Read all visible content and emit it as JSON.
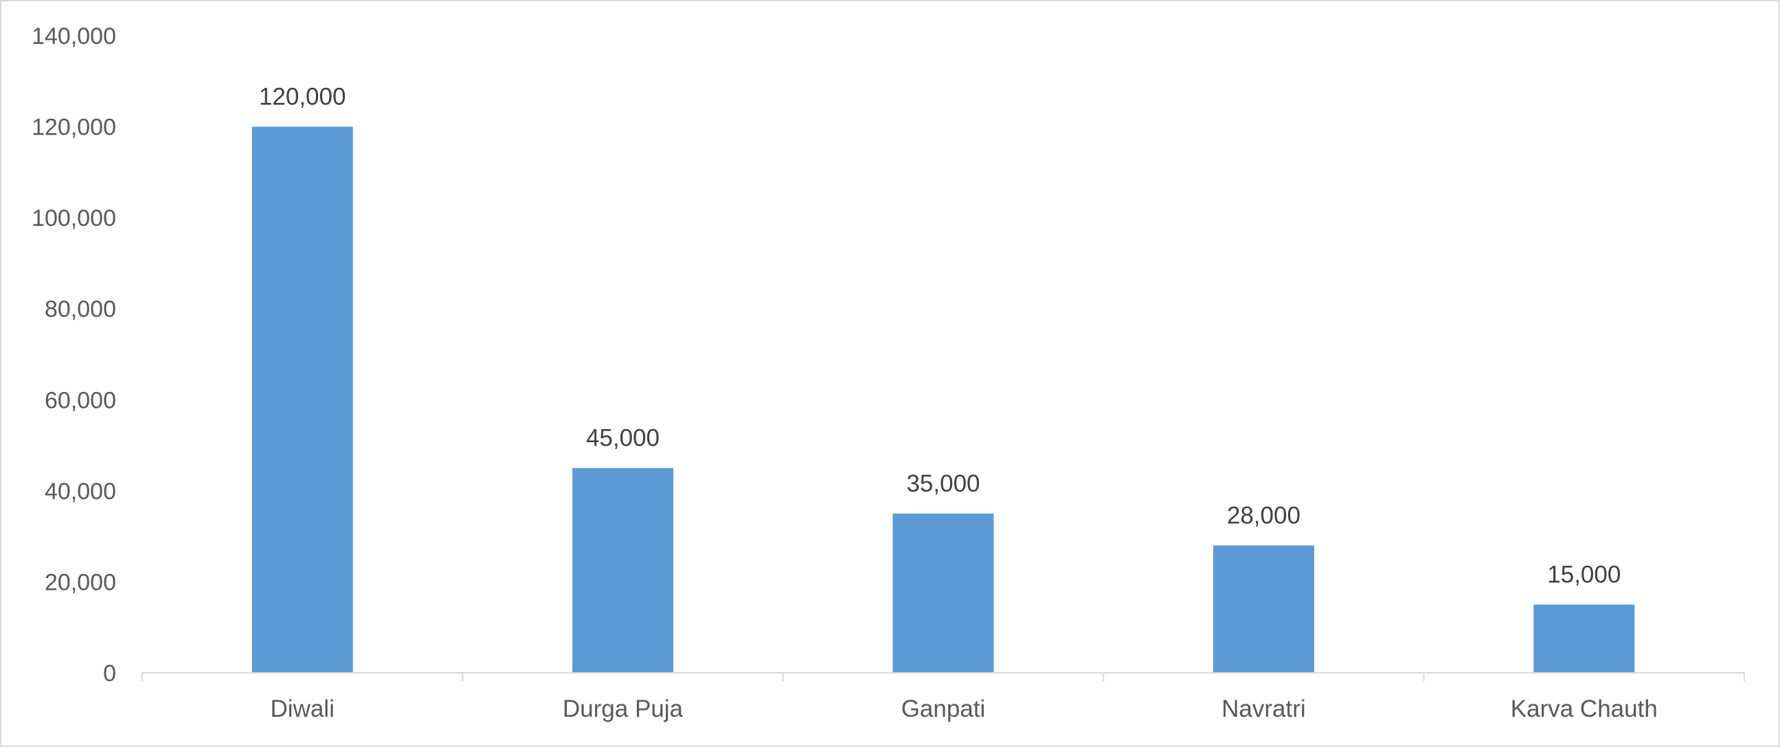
{
  "chart_data": {
    "type": "bar",
    "title": "",
    "xlabel": "",
    "ylabel": "",
    "categories": [
      "Diwali",
      "Durga Puja",
      "Ganpati",
      "Navratri",
      "Karva Chauth"
    ],
    "values": [
      120000,
      45000,
      35000,
      28000,
      15000
    ],
    "data_labels": [
      "120,000",
      "45,000",
      "35,000",
      "28,000",
      "15,000"
    ],
    "ylim": [
      0,
      140000
    ],
    "y_ticks": [
      0,
      20000,
      40000,
      60000,
      80000,
      100000,
      120000,
      140000
    ],
    "y_tick_labels": [
      "0",
      "20,000",
      "40,000",
      "60,000",
      "80,000",
      "100,000",
      "120,000",
      "140,000"
    ],
    "grid": false,
    "legend": "none",
    "bar_color": "#5b9bd5",
    "axis_color": "#d9d9d9",
    "label_color": "#595959"
  }
}
